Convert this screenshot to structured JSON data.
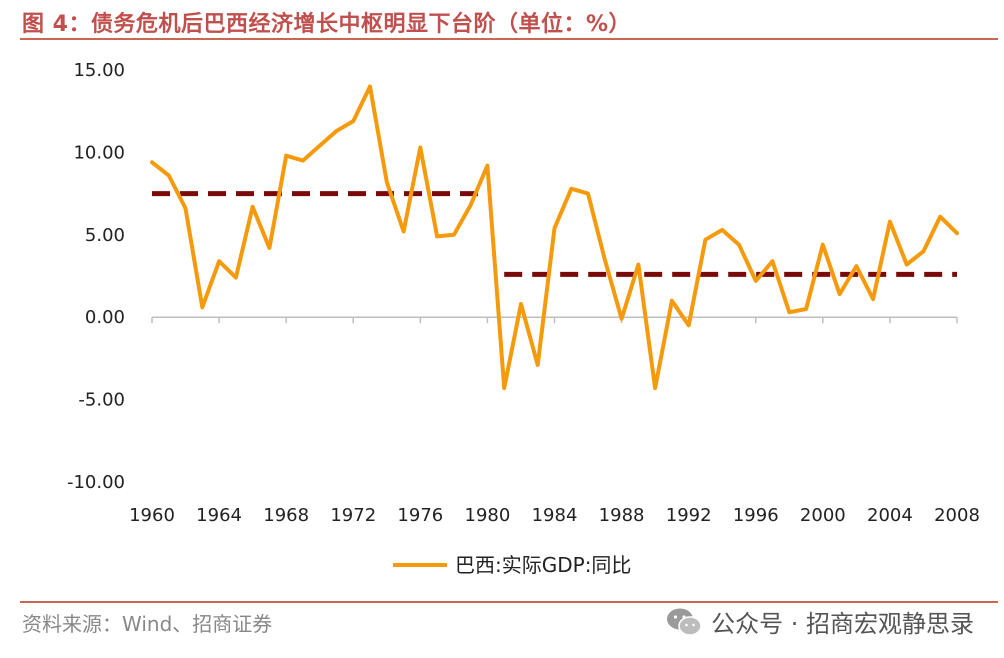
{
  "title": "图 4：债务危机后巴西经济增长中枢明显下台阶（单位：%）",
  "source": "资料来源：Wind、招商证券",
  "watermark": "公众号 · 招商宏观静思录",
  "colors": {
    "series": "#f59a0c",
    "reference": "#7a0a0a",
    "accent": "#c0504d"
  },
  "chart_data": {
    "type": "line",
    "title": "",
    "xlabel": "",
    "ylabel": "",
    "ylim": [
      -10,
      15
    ],
    "yticks": [
      "15.00",
      "10.00",
      "5.00",
      "0.00",
      "-5.00",
      "-10.00"
    ],
    "ytick_values": [
      15,
      10,
      5,
      0,
      -5,
      -10
    ],
    "xticks": [
      "1960",
      "1964",
      "1968",
      "1972",
      "1976",
      "1980",
      "1984",
      "1988",
      "1992",
      "1996",
      "2000",
      "2004",
      "2008"
    ],
    "grid": false,
    "legend": "bottom-center",
    "series": [
      {
        "name": "巴西:实际GDP:同比",
        "x": [
          1960,
          1961,
          1962,
          1963,
          1964,
          1965,
          1966,
          1967,
          1968,
          1969,
          1970,
          1971,
          1972,
          1973,
          1974,
          1975,
          1976,
          1977,
          1978,
          1979,
          1980,
          1981,
          1982,
          1983,
          1984,
          1985,
          1986,
          1987,
          1988,
          1989,
          1990,
          1991,
          1992,
          1993,
          1994,
          1995,
          1996,
          1997,
          1998,
          1999,
          2000,
          2001,
          2002,
          2003,
          2004,
          2005,
          2006,
          2007,
          2008
        ],
        "values": [
          9.4,
          8.6,
          6.6,
          0.6,
          3.4,
          2.4,
          6.7,
          4.2,
          9.8,
          9.5,
          10.4,
          11.3,
          11.9,
          14.0,
          8.2,
          5.2,
          10.3,
          4.9,
          5.0,
          6.8,
          9.2,
          -4.3,
          0.8,
          -2.9,
          5.4,
          7.8,
          7.5,
          3.5,
          -0.1,
          3.2,
          -4.3,
          1.0,
          -0.5,
          4.7,
          5.3,
          4.4,
          2.2,
          3.4,
          0.3,
          0.5,
          4.4,
          1.4,
          3.1,
          1.1,
          5.8,
          3.2,
          4.0,
          6.1,
          5.1
        ]
      }
    ],
    "reference_lines": [
      {
        "x_start": 1960,
        "x_end": 1980,
        "value": 7.5,
        "style": "dashed"
      },
      {
        "x_start": 1981,
        "x_end": 2008,
        "value": 2.6,
        "style": "dashed"
      }
    ]
  }
}
